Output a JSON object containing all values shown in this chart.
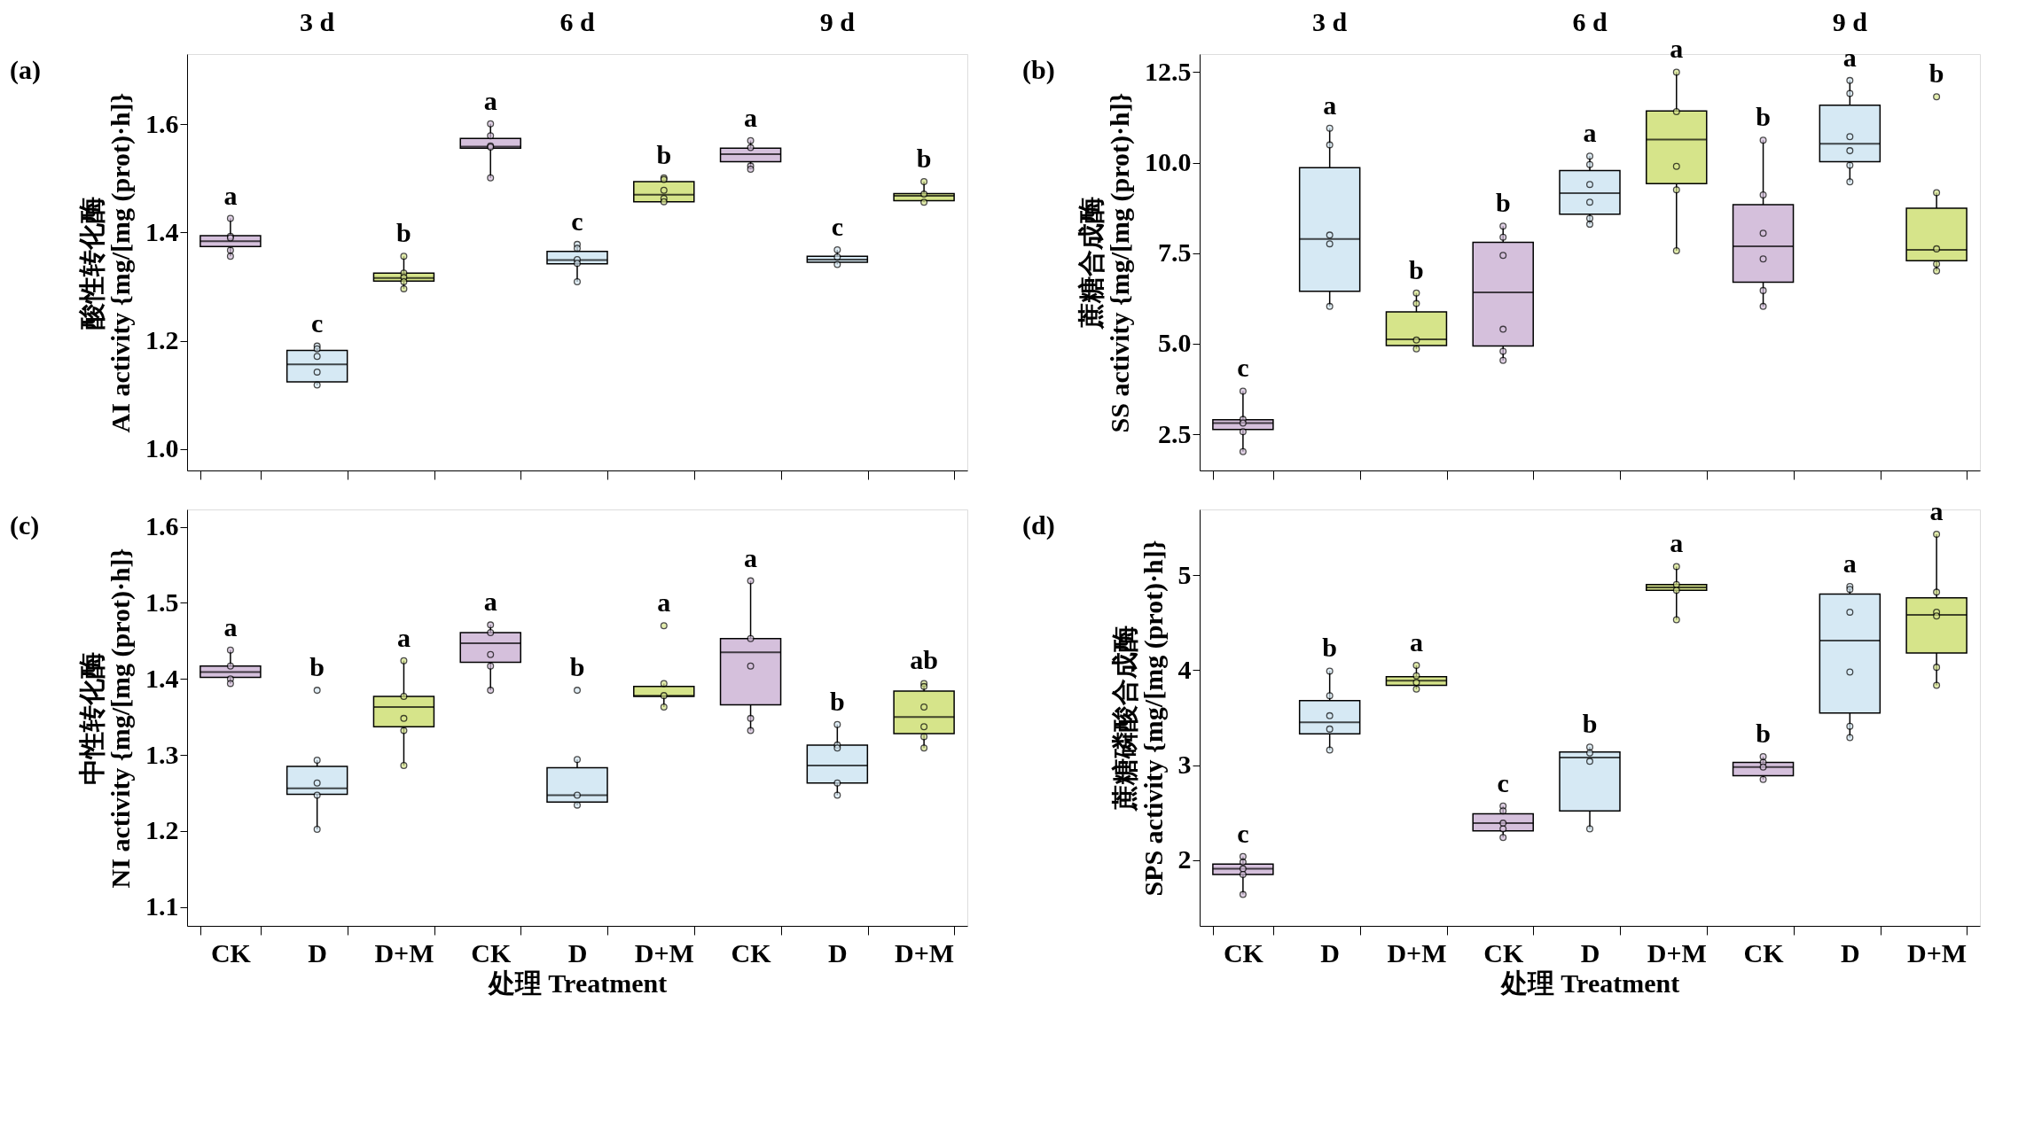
{
  "chart_data": [
    {
      "type": "box",
      "title": "(a)",
      "ylabel": "酸性转化酶\nAI activity {mg/[mg (prot)·h]}",
      "tick_labels": "y",
      "categories": [
        null,
        null,
        null,
        null,
        null,
        null,
        null,
        null,
        null
      ],
      "colors": [
        "#d5c0dc",
        "#d6e9f4",
        "#d6e48a",
        "#d5c0dc",
        "#d6e9f4",
        "#d6e48a",
        "#d5c0dc",
        "#d6e9f4",
        "#d6e48a"
      ],
      "ylim": [
        0.96,
        1.73
      ],
      "yticks": [
        {
          "value": 1,
          "label": "1.0"
        },
        1.2,
        1.4,
        1.6
      ],
      "boxes": [
        {
          "low": 1.356,
          "q1": 1.374,
          "median": 1.384,
          "q3": 1.394,
          "high": 1.426,
          "outliers": [
            1.426,
            1.393,
            1.39,
            1.367,
            1.356
          ]
        },
        {
          "low": 1.118,
          "q1": 1.124,
          "median": 1.156,
          "q3": 1.182,
          "high": 1.19,
          "outliers": [
            1.19,
            1.185,
            1.171,
            1.142,
            1.118
          ]
        },
        {
          "low": 1.296,
          "q1": 1.31,
          "median": 1.316,
          "q3": 1.325,
          "high": 1.356,
          "outliers": [
            1.356,
            1.325,
            1.317,
            1.309,
            1.296
          ]
        },
        {
          "low": 1.501,
          "q1": 1.556,
          "median": 1.559,
          "q3": 1.574,
          "high": 1.601,
          "outliers": [
            1.601,
            1.579,
            1.56,
            1.558,
            1.501
          ]
        },
        {
          "low": 1.309,
          "q1": 1.342,
          "median": 1.349,
          "q3": 1.365,
          "high": 1.378,
          "outliers": [
            1.378,
            1.371,
            1.35,
            1.343,
            1.309
          ]
        },
        {
          "low": 1.457,
          "q1": 1.457,
          "median": 1.47,
          "q3": 1.494,
          "high": 1.501,
          "outliers": [
            1.501,
            1.498,
            1.478,
            1.463,
            1.457
          ]
        },
        {
          "low": 1.517,
          "q1": 1.531,
          "median": 1.545,
          "q3": 1.556,
          "high": 1.57,
          "outliers": [
            1.57,
            1.557,
            1.523,
            1.517
          ]
        },
        {
          "low": 1.341,
          "q1": 1.345,
          "median": 1.35,
          "q3": 1.356,
          "high": 1.368,
          "outliers": [
            1.368,
            1.355,
            1.341
          ]
        },
        {
          "low": 1.456,
          "q1": 1.459,
          "median": 1.468,
          "q3": 1.472,
          "high": 1.494,
          "outliers": [
            1.494,
            1.471,
            1.456
          ]
        }
      ],
      "annotations": [
        "3 d",
        "6 d",
        "9 d",
        "a",
        "c",
        "b",
        "a",
        "c",
        "b",
        "a",
        "c",
        "b"
      ]
    },
    {
      "type": "box",
      "title": "(b)",
      "ylabel": "蔗糖合成酶\nSS activity {mg/[mg (prot)·h]}",
      "tick_labels": "y",
      "categories": [
        null,
        null,
        null,
        null,
        null,
        null,
        null,
        null,
        null
      ],
      "colors": [
        "#d5c0dc",
        "#d6e9f4",
        "#d6e48a",
        "#d5c0dc",
        "#d6e9f4",
        "#d6e48a",
        "#d5c0dc",
        "#d6e9f4",
        "#d6e48a"
      ],
      "ylim": [
        1.5,
        13.0
      ],
      "yticks": [
        2.5,
        {
          "value": 5,
          "label": "5.0"
        },
        7.5,
        {
          "value": 10,
          "label": "10.0"
        },
        12.5
      ],
      "boxes": [
        {
          "low": 2.02,
          "q1": 2.63,
          "median": 2.81,
          "q3": 2.9,
          "high": 3.69,
          "outliers": [
            3.69,
            2.91,
            2.81,
            2.57,
            2.02
          ]
        },
        {
          "low": 6.03,
          "q1": 6.45,
          "median": 7.89,
          "q3": 9.86,
          "high": 10.95,
          "outliers": [
            10.95,
            10.49,
            8.0,
            7.76,
            6.03
          ]
        },
        {
          "low": 4.86,
          "q1": 4.95,
          "median": 5.12,
          "q3": 5.88,
          "high": 6.4,
          "outliers": [
            6.4,
            6.11,
            5.1,
            4.86
          ]
        },
        {
          "low": 4.54,
          "q1": 4.94,
          "median": 6.42,
          "q3": 7.8,
          "high": 8.25,
          "outliers": [
            8.25,
            7.94,
            7.44,
            5.4,
            4.79,
            4.54
          ]
        },
        {
          "low": 8.3,
          "q1": 8.58,
          "median": 9.16,
          "q3": 9.78,
          "high": 10.18,
          "outliers": [
            10.18,
            9.95,
            9.4,
            8.91,
            8.46,
            8.3
          ]
        },
        {
          "low": 7.57,
          "q1": 9.42,
          "median": 10.64,
          "q3": 11.43,
          "high": 12.5,
          "outliers": [
            12.5,
            11.41,
            9.9,
            9.25,
            7.57
          ]
        },
        {
          "low": 6.03,
          "q1": 6.7,
          "median": 7.69,
          "q3": 8.84,
          "high": 10.62,
          "outliers": [
            10.62,
            9.11,
            8.05,
            7.34,
            6.47,
            6.03
          ]
        },
        {
          "low": 9.47,
          "q1": 10.03,
          "median": 10.52,
          "q3": 11.59,
          "high": 12.27,
          "outliers": [
            12.27,
            11.91,
            10.72,
            10.33,
            9.93,
            9.47
          ]
        },
        {
          "low": 7.01,
          "q1": 7.29,
          "median": 7.59,
          "q3": 8.74,
          "high": 9.17,
          "outliers": [
            11.82,
            9.17,
            7.62,
            7.2,
            7.01
          ]
        }
      ],
      "annotations": [
        "3 d",
        "6 d",
        "9 d",
        "c",
        "a",
        "b",
        "b",
        "a",
        "a",
        "b",
        "a",
        "b"
      ]
    },
    {
      "type": "box",
      "title": "(c)",
      "ylabel": "中性转化酶\nNI activity {mg/[mg (prot)·h]}",
      "xlabel": "处理 Treatment",
      "categories": [
        "CK",
        "D",
        "D+M",
        "CK",
        "D",
        "D+M",
        "CK",
        "D",
        "D+M"
      ],
      "colors": [
        "#d5c0dc",
        "#d6e9f4",
        "#d6e48a",
        "#d5c0dc",
        "#d6e9f4",
        "#d6e48a",
        "#d5c0dc",
        "#d6e9f4",
        "#d6e48a"
      ],
      "ylim": [
        1.075,
        1.623
      ],
      "yticks": [
        1.1,
        1.2,
        1.3,
        1.4,
        1.5,
        1.6
      ],
      "boxes": [
        {
          "low": 1.394,
          "q1": 1.402,
          "median": 1.409,
          "q3": 1.417,
          "high": 1.438,
          "outliers": [
            1.438,
            1.417,
            1.4,
            1.394
          ]
        },
        {
          "low": 1.202,
          "q1": 1.248,
          "median": 1.256,
          "q3": 1.285,
          "high": 1.293,
          "outliers": [
            1.385,
            1.293,
            1.263,
            1.247,
            1.202
          ]
        },
        {
          "low": 1.286,
          "q1": 1.337,
          "median": 1.363,
          "q3": 1.377,
          "high": 1.424,
          "outliers": [
            1.424,
            1.377,
            1.348,
            1.332,
            1.286
          ]
        },
        {
          "low": 1.385,
          "q1": 1.422,
          "median": 1.447,
          "q3": 1.461,
          "high": 1.471,
          "outliers": [
            1.471,
            1.461,
            1.432,
            1.417,
            1.385
          ]
        },
        {
          "low": 1.234,
          "q1": 1.238,
          "median": 1.247,
          "q3": 1.283,
          "high": 1.294,
          "outliers": [
            1.385,
            1.294,
            1.247,
            1.234
          ]
        },
        {
          "low": 1.363,
          "q1": 1.377,
          "median": 1.378,
          "q3": 1.39,
          "high": 1.394,
          "outliers": [
            1.47,
            1.394,
            1.378,
            1.363
          ]
        },
        {
          "low": 1.332,
          "q1": 1.366,
          "median": 1.435,
          "q3": 1.453,
          "high": 1.529,
          "outliers": [
            1.529,
            1.453,
            1.417,
            1.348,
            1.332
          ]
        },
        {
          "low": 1.247,
          "q1": 1.263,
          "median": 1.286,
          "q3": 1.313,
          "high": 1.34,
          "outliers": [
            1.34,
            1.313,
            1.309,
            1.263,
            1.247
          ]
        },
        {
          "low": 1.309,
          "q1": 1.328,
          "median": 1.35,
          "q3": 1.384,
          "high": 1.394,
          "outliers": [
            1.394,
            1.39,
            1.363,
            1.337,
            1.324,
            1.309
          ]
        }
      ],
      "annotations": [
        "a",
        "b",
        "a",
        "a",
        "b",
        "a",
        "a",
        "b",
        "ab"
      ]
    },
    {
      "type": "box",
      "title": "(d)",
      "ylabel": "蔗糖磷酸合成酶\nSPS activity {mg/[mg (prot)·h]}",
      "xlabel": "处理 Treatment",
      "categories": [
        "CK",
        "D",
        "D+M",
        "CK",
        "D",
        "D+M",
        "CK",
        "D",
        "D+M"
      ],
      "colors": [
        "#d5c0dc",
        "#d6e9f4",
        "#d6e48a",
        "#d5c0dc",
        "#d6e9f4",
        "#d6e48a",
        "#d5c0dc",
        "#d6e9f4",
        "#d6e48a"
      ],
      "ylim": [
        1.31,
        5.69
      ],
      "yticks": [
        2,
        3,
        4,
        5
      ],
      "boxes": [
        {
          "low": 1.64,
          "q1": 1.85,
          "median": 1.91,
          "q3": 1.96,
          "high": 2.04,
          "outliers": [
            2.04,
            1.98,
            1.91,
            1.85,
            1.64
          ]
        },
        {
          "low": 3.16,
          "q1": 3.33,
          "median": 3.45,
          "q3": 3.68,
          "high": 3.99,
          "outliers": [
            3.99,
            3.73,
            3.52,
            3.38,
            3.16
          ]
        },
        {
          "low": 3.8,
          "q1": 3.84,
          "median": 3.89,
          "q3": 3.93,
          "high": 4.05,
          "outliers": [
            4.05,
            3.94,
            3.87,
            3.8
          ]
        },
        {
          "low": 2.24,
          "q1": 2.31,
          "median": 2.39,
          "q3": 2.49,
          "high": 2.57,
          "outliers": [
            2.57,
            2.52,
            2.39,
            2.33,
            2.24
          ]
        },
        {
          "low": 2.33,
          "q1": 2.52,
          "median": 3.08,
          "q3": 3.14,
          "high": 3.19,
          "outliers": [
            3.19,
            3.13,
            3.04,
            2.33
          ]
        },
        {
          "low": 4.53,
          "q1": 4.84,
          "median": 4.87,
          "q3": 4.9,
          "high": 5.09,
          "outliers": [
            5.09,
            4.9,
            4.84,
            4.53
          ]
        },
        {
          "low": 2.85,
          "q1": 2.89,
          "median": 2.98,
          "q3": 3.03,
          "high": 3.09,
          "outliers": [
            3.09,
            3.03,
            2.98,
            2.85
          ]
        },
        {
          "low": 3.29,
          "q1": 3.55,
          "median": 4.31,
          "q3": 4.8,
          "high": 4.88,
          "outliers": [
            4.88,
            4.85,
            4.61,
            3.98,
            3.41,
            3.29
          ]
        },
        {
          "low": 3.84,
          "q1": 4.18,
          "median": 4.58,
          "q3": 4.76,
          "high": 5.43,
          "outliers": [
            5.43,
            4.82,
            4.61,
            4.57,
            4.03,
            3.84
          ]
        }
      ],
      "annotations": [
        "c",
        "b",
        "a",
        "c",
        "b",
        "a",
        "b",
        "a",
        "a"
      ]
    }
  ]
}
